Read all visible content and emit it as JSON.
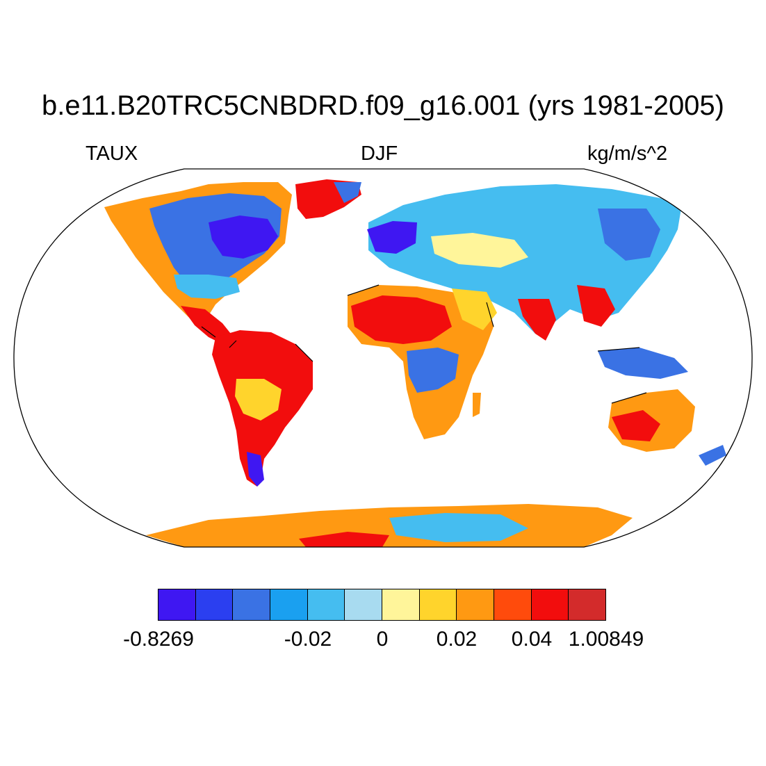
{
  "title": "b.e11.B20TRC5CNBDRD.f09_g16.001 (yrs 1981-2005)",
  "left_label": "TAUX",
  "center_label": "DJF",
  "right_label": "kg/m/s^2",
  "colorbar": {
    "colors": [
      "#3f17f2",
      "#2b3ff0",
      "#3a72e4",
      "#1aa0f0",
      "#45bdf0",
      "#a8dbf0",
      "#fff59a",
      "#ffd42c",
      "#ff9912",
      "#ff4b0c",
      "#f20d0d",
      "#d32b2b"
    ],
    "labels": [
      "-0.8269",
      "-0.02",
      "0",
      "0.02",
      "0.04",
      "1.00849"
    ]
  },
  "map": {
    "projection": "Robinson",
    "field_colors": {
      "strong_neg": "#3f17f2",
      "neg": "#3a72e4",
      "weak_neg": "#45bdf0",
      "near_zero_neg": "#a8dbf0",
      "near_zero_pos": "#fff59a",
      "weak_pos": "#ffd42c",
      "pos": "#ff9912",
      "strong_pos": "#f20d0d"
    }
  }
}
